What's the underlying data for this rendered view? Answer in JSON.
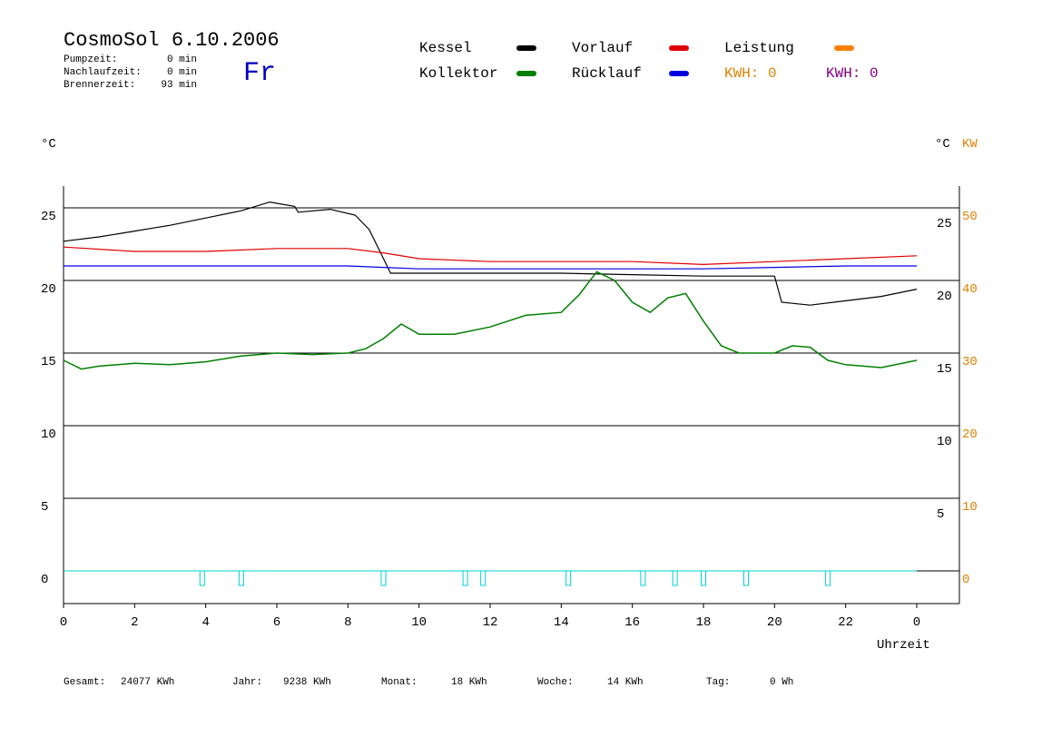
{
  "header": {
    "title": "CosmoSol 6.10.2006",
    "day": "Fr",
    "info": [
      [
        "Pumpzeit:",
        "0 min"
      ],
      [
        "Nachlaufzeit:",
        "0 min"
      ],
      [
        "Brennerzeit:",
        "93 min"
      ]
    ]
  },
  "chart_data": {
    "type": "line",
    "ylabel": "°C",
    "y2label": "°C",
    "y2unit": "KW",
    "xlabel": "Uhrzeit",
    "xlim": [
      0,
      25.2
    ],
    "ylim": [
      -2.25,
      26.5
    ],
    "y2lim": [
      -4.5,
      53
    ],
    "xticks": [
      0,
      2,
      4,
      6,
      8,
      10,
      12,
      14,
      16,
      18,
      20,
      22,
      {
        "value": 24,
        "label": "0"
      }
    ],
    "yticks": [
      0,
      5,
      10,
      15,
      20,
      25
    ],
    "y2ticks": [
      0,
      10,
      20,
      30,
      40,
      50
    ],
    "grid": true,
    "series": [
      {
        "name": "Kessel",
        "color": "#000000",
        "x": [
          0,
          1,
          2,
          3,
          4,
          5,
          5.8,
          6.5,
          6.6,
          7.5,
          8.2,
          8.6,
          9.0,
          9.2,
          10,
          12,
          14,
          16,
          18,
          20,
          20.2,
          21,
          22,
          23,
          24
        ],
        "values": [
          22.7,
          23.0,
          23.4,
          23.8,
          24.3,
          24.8,
          25.4,
          25.1,
          24.7,
          24.9,
          24.5,
          23.5,
          21.5,
          20.5,
          20.5,
          20.5,
          20.5,
          20.4,
          20.3,
          20.3,
          18.5,
          18.3,
          18.6,
          18.9,
          19.4
        ]
      },
      {
        "name": "Kollektor",
        "color": "#008000",
        "x": [
          0,
          0.5,
          1,
          2,
          3,
          4,
          5,
          6,
          7,
          8,
          8.5,
          9,
          9.5,
          10,
          11,
          12,
          12.5,
          13,
          14,
          14.5,
          15,
          15.5,
          16,
          16.5,
          17,
          17.5,
          18,
          18.5,
          19,
          20,
          20.5,
          21,
          21.5,
          22,
          23,
          24
        ],
        "values": [
          14.5,
          13.9,
          14.1,
          14.3,
          14.2,
          14.4,
          14.8,
          15.0,
          14.9,
          15.0,
          15.3,
          16.0,
          17.0,
          16.3,
          16.3,
          16.8,
          17.2,
          17.6,
          17.8,
          19.0,
          20.6,
          20.0,
          18.5,
          17.8,
          18.8,
          19.1,
          17.2,
          15.5,
          15.0,
          15.0,
          15.5,
          15.4,
          14.5,
          14.2,
          14.0,
          14.5
        ]
      },
      {
        "name": "Vorlauf",
        "color": "#e00000",
        "x": [
          0,
          2,
          4,
          6,
          8,
          9,
          10,
          12,
          14,
          16,
          18,
          20,
          22,
          24
        ],
        "values": [
          22.3,
          22.0,
          22.0,
          22.2,
          22.2,
          21.9,
          21.5,
          21.3,
          21.3,
          21.3,
          21.1,
          21.3,
          21.5,
          21.7
        ]
      },
      {
        "name": "Rücklauf",
        "color": "#0000e0",
        "x": [
          0,
          8,
          9,
          10,
          16,
          18,
          20,
          22,
          24
        ],
        "values": [
          21.0,
          21.0,
          20.9,
          20.8,
          20.8,
          20.8,
          20.9,
          21.0,
          21.0
        ]
      },
      {
        "name": "Leistung",
        "color": "#ff8000",
        "x": [],
        "values": []
      }
    ],
    "kwh": [
      {
        "label": "KWH: 0",
        "color": "#e08000"
      },
      {
        "label": "KWH: 0",
        "color": "#800080"
      }
    ],
    "pulses": {
      "color": "#00d0d0",
      "x": [
        3.9,
        5.0,
        9.0,
        11.3,
        11.8,
        14.2,
        16.3,
        17.2,
        18.0,
        19.2,
        21.5
      ],
      "values": [
        -1,
        -1,
        -1,
        -1,
        -1,
        -1,
        -1,
        -1,
        -1,
        -1,
        -1
      ]
    }
  },
  "footer": [
    [
      "Gesamt:",
      "24077 KWh"
    ],
    [
      "Jahr:",
      "9238 KWh"
    ],
    [
      "Monat:",
      "18 KWh"
    ],
    [
      "Woche:",
      "14 KWh"
    ],
    [
      "Tag:",
      "0 Wh"
    ]
  ]
}
